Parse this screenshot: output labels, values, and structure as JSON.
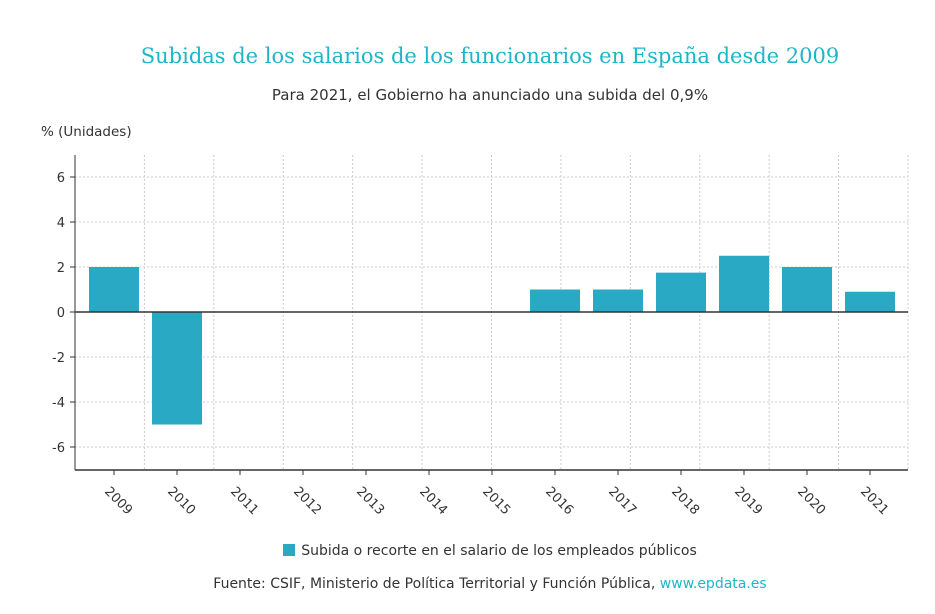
{
  "chart_data": {
    "type": "bar",
    "title": "Subidas de los salarios de los funcionarios en España desde 2009",
    "subtitle": "Para 2021, el Gobierno ha anunciado una subida del 0,9%",
    "ylabel": "% (Unidades)",
    "xlabel": "",
    "categories": [
      "2009",
      "2010",
      "2011",
      "2012",
      "2013",
      "2014",
      "2015",
      "2016",
      "2017",
      "2018",
      "2019",
      "2020",
      "2021"
    ],
    "series": [
      {
        "name": "Subida o recorte en el salario de los empleados públicos",
        "values": [
          2,
          -5,
          0,
          0,
          0,
          0,
          0,
          1,
          1,
          1.75,
          2.5,
          2,
          0.9
        ],
        "color": "#29a9c3"
      }
    ],
    "ylim": [
      -7,
      6.9
    ],
    "yticks": [
      6,
      4,
      2,
      0,
      -2,
      -4,
      -6
    ],
    "ytick_labels": [
      "6",
      "4",
      "2",
      "0",
      "-2",
      "-4",
      "-6"
    ],
    "grid": true,
    "legend": "bottom"
  },
  "source": {
    "text": "Fuente: CSIF, Ministerio de Política Territorial y Función Pública, ",
    "link": "www.epdata.es"
  },
  "colors": {
    "title": "#1fb5c9",
    "bar": "#29a9c3"
  }
}
